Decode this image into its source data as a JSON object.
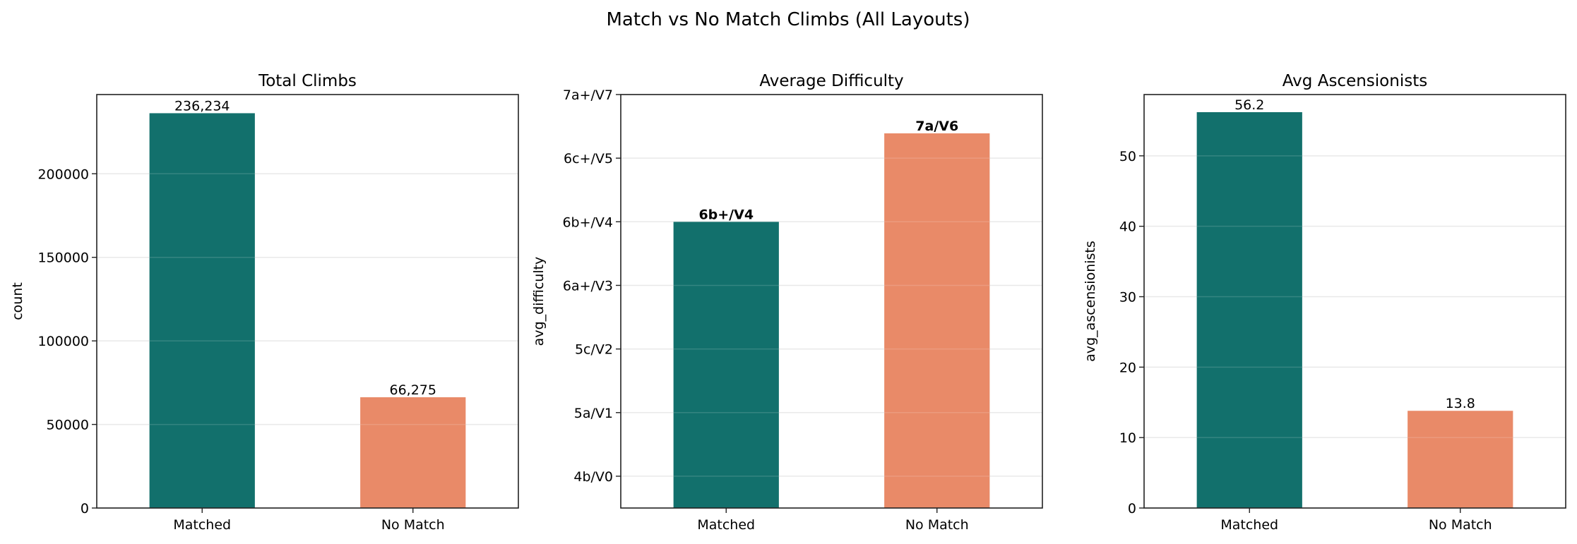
{
  "title": "Match vs No Match Climbs (All Layouts)",
  "colors": {
    "matched": "#12706c",
    "no_match": "#e98a68",
    "grid": "#e6e6e6"
  },
  "chart_data": [
    {
      "type": "bar",
      "title": "Total Climbs",
      "xlabel": "",
      "ylabel": "count",
      "categories": [
        "Matched",
        "No Match"
      ],
      "values": [
        236234,
        66275
      ],
      "data_labels": [
        "236,234",
        "66,275"
      ],
      "label_bold": false,
      "ylim": [
        0,
        247400
      ],
      "yticks": [
        0,
        50000,
        100000,
        150000,
        200000
      ],
      "ytick_labels": [
        "0",
        "50000",
        "100000",
        "150000",
        "200000"
      ],
      "grid": true
    },
    {
      "type": "bar",
      "title": "Average Difficulty",
      "xlabel": "",
      "ylabel": "avg_difficulty",
      "categories": [
        "Matched",
        "No Match"
      ],
      "values": [
        4.0,
        5.39
      ],
      "data_labels": [
        "6b+/V4",
        "7a/V6"
      ],
      "label_bold": true,
      "ylim": [
        -0.5,
        6.0
      ],
      "yticks": [
        0,
        1,
        2,
        3,
        4,
        5,
        6
      ],
      "ytick_labels": [
        "4b/V0",
        "5a/V1",
        "5c/V2",
        "6a+/V3",
        "6b+/V4",
        "6c+/V5",
        "7a+/V7"
      ],
      "grid": true
    },
    {
      "type": "bar",
      "title": "Avg Ascensionists",
      "xlabel": "",
      "ylabel": "avg_ascensionists",
      "categories": [
        "Matched",
        "No Match"
      ],
      "values": [
        56.2,
        13.8
      ],
      "data_labels": [
        "56.2",
        "13.8"
      ],
      "label_bold": false,
      "ylim": [
        0,
        58.7
      ],
      "yticks": [
        0,
        10,
        20,
        30,
        40,
        50
      ],
      "ytick_labels": [
        "0",
        "10",
        "20",
        "30",
        "40",
        "50"
      ],
      "grid": true
    }
  ]
}
